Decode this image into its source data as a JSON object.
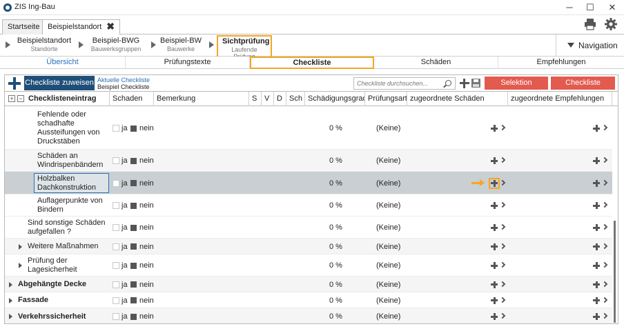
{
  "window": {
    "title": "ZIS Ing-Bau",
    "minimize": "─",
    "maximize": "☐",
    "close": "✕"
  },
  "tabs": [
    {
      "label": "Startseite"
    },
    {
      "label": "Beispielstandort",
      "close": "✖"
    }
  ],
  "breadcrumb": [
    {
      "title": "Beispielstandort",
      "sub": "Standorte"
    },
    {
      "title": "Beispiel-BWG",
      "sub": "Bauwerksgruppen"
    },
    {
      "title": "Beispiel-BW",
      "sub": "Bauwerke"
    },
    {
      "title": "Sichtprüfung",
      "sub": "Laufende Prüfung"
    }
  ],
  "navigation_label": "Navigation",
  "section_tabs": [
    "Übersicht",
    "Prüfungstexte",
    "Checkliste",
    "Schäden",
    "Empfehlungen"
  ],
  "toolbar": {
    "assign_label": "Checkliste zuweisen",
    "current_label": "Aktuelle Checkliste",
    "current_value": "Beispiel Checkliste",
    "search_placeholder": "Checkliste durchsuchen...",
    "remove_selection": "Selektion entfernen",
    "remove_checklist": "Checkliste entfernen"
  },
  "columns": {
    "expand": "+",
    "collapse": "−",
    "entry": "Checklisteneintrag",
    "damage": "Schaden",
    "remark": "Bemerkung",
    "s": "S",
    "v": "V",
    "d": "D",
    "sch": "Sch",
    "degree": "Schädigungsgrad",
    "type": "Prüfungsart",
    "damages": "zugeordnete Schäden",
    "recommendations": "zugeordnete Empfehlungen"
  },
  "yes_label": "ja",
  "no_label": "nein",
  "rows": [
    {
      "line1": "Fehlende oder",
      "line2": "schadhafte",
      "line3": "Aussteifungen von",
      "line4": "Druckstäben",
      "degree": "0 %",
      "type": "(Keine)"
    },
    {
      "line1": "Schäden an",
      "line2": "Windrispenbändern",
      "degree": "0 %",
      "type": "(Keine)"
    },
    {
      "line1": "Holzbalken",
      "line2": "Dachkonstruktion",
      "degree": "0 %",
      "type": "(Keine)"
    },
    {
      "line1": "Auflagerpunkte von",
      "line2": "Bindern",
      "degree": "0 %",
      "type": "(Keine)"
    },
    {
      "line1": "Sind sonstige Schäden",
      "line2": "aufgefallen ?",
      "degree": "0 %",
      "type": "(Keine)"
    },
    {
      "line1": "Weitere Maßnahmen",
      "degree": "0 %",
      "type": "(Keine)"
    },
    {
      "line1": "Prüfung der",
      "line2": "Lagesicherheit",
      "degree": "0 %",
      "type": "(Keine)"
    },
    {
      "line1": "Abgehängte Decke",
      "degree": "0 %",
      "type": "(Keine)"
    },
    {
      "line1": "Fassade",
      "degree": "0 %",
      "type": "(Keine)"
    },
    {
      "line1": "Verkehrssicherheit",
      "degree": "0 %",
      "type": "(Keine)"
    }
  ],
  "colors": {
    "accent": "#1f4e79",
    "highlight": "#f5a623",
    "danger": "#e35a4f",
    "selected_row": "#c9cfd2"
  }
}
